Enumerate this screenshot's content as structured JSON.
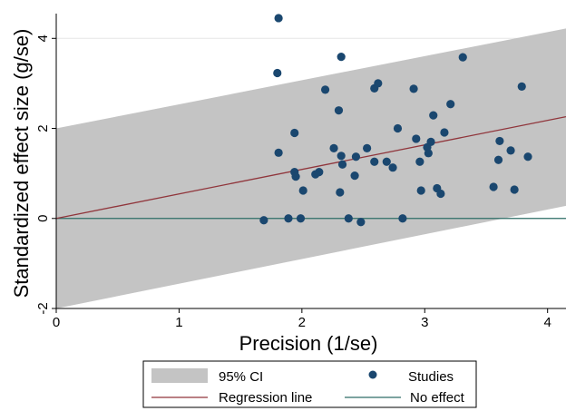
{
  "chart_data": {
    "type": "scatter",
    "title": "",
    "xlabel": "Precision (1/se)",
    "ylabel": "Standardized effect size  (g/se)",
    "xlim": [
      0,
      4.15
    ],
    "ylim": [
      -2,
      4.55
    ],
    "xticks": [
      "0",
      "1",
      "2",
      "3",
      "4"
    ],
    "yticks": [
      "-2",
      "0",
      "2",
      "4"
    ],
    "grid": true,
    "colors": {
      "ci_band": "#c4c4c4",
      "studies": "#1a476f",
      "regression": "#90353b",
      "no_effect": "#2e6e67"
    },
    "ci_band": {
      "name": "95% CI",
      "lower_at_x0": -2.0,
      "lower_at_xmax": 0.28,
      "upper_at_x0": 2.0,
      "upper_at_xmax": 4.22
    },
    "regression_line": {
      "name": "Regression line",
      "x": [
        0,
        4.15
      ],
      "y": [
        0,
        2.26
      ]
    },
    "no_effect_line": {
      "name": "No effect",
      "y": 0
    },
    "series": [
      {
        "name": "Studies",
        "points": [
          [
            1.81,
            4.45
          ],
          [
            1.8,
            3.23
          ],
          [
            2.32,
            3.59
          ],
          [
            3.31,
            3.58
          ],
          [
            2.19,
            2.86
          ],
          [
            2.59,
            2.89
          ],
          [
            2.62,
            3.0
          ],
          [
            2.91,
            2.88
          ],
          [
            3.79,
            2.93
          ],
          [
            3.21,
            2.54
          ],
          [
            2.3,
            2.4
          ],
          [
            3.07,
            2.29
          ],
          [
            2.78,
            2.0
          ],
          [
            1.94,
            1.9
          ],
          [
            3.16,
            1.91
          ],
          [
            2.93,
            1.77
          ],
          [
            3.05,
            1.7
          ],
          [
            3.61,
            1.72
          ],
          [
            2.26,
            1.56
          ],
          [
            2.53,
            1.56
          ],
          [
            3.02,
            1.58
          ],
          [
            1.81,
            1.46
          ],
          [
            3.7,
            1.51
          ],
          [
            2.32,
            1.39
          ],
          [
            2.44,
            1.37
          ],
          [
            3.03,
            1.45
          ],
          [
            3.84,
            1.37
          ],
          [
            2.59,
            1.26
          ],
          [
            2.96,
            1.26
          ],
          [
            3.6,
            1.3
          ],
          [
            2.33,
            1.2
          ],
          [
            2.69,
            1.26
          ],
          [
            2.74,
            1.13
          ],
          [
            1.94,
            1.03
          ],
          [
            2.14,
            1.03
          ],
          [
            2.11,
            0.98
          ],
          [
            1.95,
            0.93
          ],
          [
            2.43,
            0.95
          ],
          [
            2.01,
            0.62
          ],
          [
            2.31,
            0.58
          ],
          [
            2.97,
            0.62
          ],
          [
            3.1,
            0.67
          ],
          [
            3.13,
            0.55
          ],
          [
            3.56,
            0.7
          ],
          [
            3.73,
            0.64
          ],
          [
            1.69,
            -0.04
          ],
          [
            1.89,
            0.0
          ],
          [
            1.99,
            0.0
          ],
          [
            2.38,
            0.0
          ],
          [
            2.48,
            -0.08
          ],
          [
            2.82,
            0.0
          ]
        ]
      }
    ],
    "legend": {
      "position": "bottom",
      "entries": [
        "95% CI",
        "Studies",
        "Regression line",
        "No effect"
      ]
    }
  }
}
